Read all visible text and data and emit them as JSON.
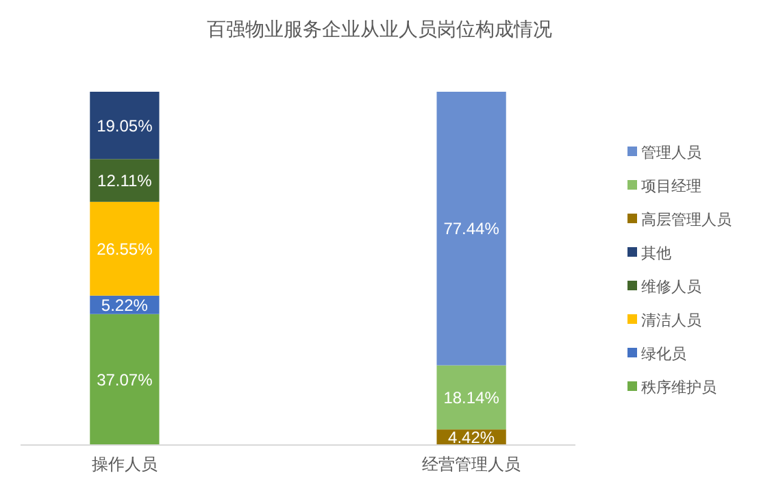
{
  "chart_data": {
    "type": "bar",
    "title": "百强物业服务企业从业人员岗位构成情况",
    "categories": [
      "操作人员",
      "经营管理人员"
    ],
    "stacked": true,
    "tick_labels": "x",
    "legend": "right",
    "series": [
      {
        "name": "秩序维护员",
        "color": "#70ad47",
        "values": [
          37.07,
          null
        ],
        "value_labels": [
          "37.07%",
          null
        ]
      },
      {
        "name": "绿化员",
        "color": "#4472c4",
        "values": [
          5.22,
          null
        ],
        "value_labels": [
          "5.22%",
          null
        ]
      },
      {
        "name": "清洁人员",
        "color": "#ffc000",
        "values": [
          26.55,
          null
        ],
        "value_labels": [
          "26.55%",
          null
        ]
      },
      {
        "name": "维修人员",
        "color": "#43682b",
        "values": [
          12.11,
          null
        ],
        "value_labels": [
          "12.11%",
          null
        ]
      },
      {
        "name": "其他",
        "color": "#264478",
        "values": [
          19.05,
          null
        ],
        "value_labels": [
          "19.05%",
          null
        ]
      },
      {
        "name": "高层管理人员",
        "color": "#997300",
        "values": [
          null,
          4.42
        ],
        "value_labels": [
          null,
          "4.42%"
        ]
      },
      {
        "name": "项目经理",
        "color": "#8cc168",
        "values": [
          null,
          18.14
        ],
        "value_labels": [
          null,
          "18.14%"
        ]
      },
      {
        "name": "管理人员",
        "color": "#698ed0",
        "values": [
          null,
          77.44
        ],
        "value_labels": [
          null,
          "77.44%"
        ]
      }
    ]
  }
}
